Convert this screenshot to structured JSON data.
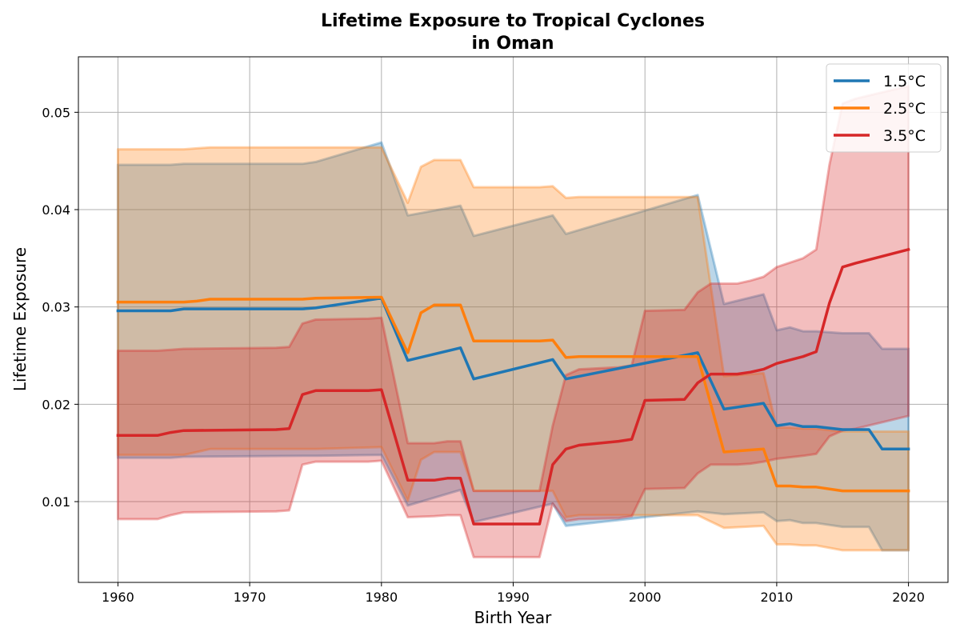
{
  "chart_data": {
    "type": "area",
    "title": "Lifetime Exposure to Tropical Cyclones",
    "subtitle": "in Oman",
    "xlabel": "Birth Year",
    "ylabel": "Lifetime Exposure",
    "xlim": [
      1957,
      2023
    ],
    "ylim": [
      0.0017,
      0.0557
    ],
    "xticks": [
      1960,
      1970,
      1980,
      1990,
      2000,
      2010,
      2020
    ],
    "xtick_labels": [
      "1960",
      "1970",
      "1980",
      "1990",
      "2000",
      "2010",
      "2020"
    ],
    "yticks": [
      0.01,
      0.02,
      0.03,
      0.04,
      0.05
    ],
    "ytick_labels": [
      "0.01",
      "0.02",
      "0.03",
      "0.04",
      "0.05"
    ],
    "grid": true,
    "legend_position": "top-right",
    "series": [
      {
        "name": "1.5°C",
        "color": "#1f77b4",
        "x": [
          1960,
          1964,
          1965,
          1974,
          1975,
          1980,
          1982,
          1986,
          1987,
          1993,
          1994,
          2004,
          2006,
          2009,
          2010,
          2011,
          2012,
          2013,
          2015,
          2017,
          2018,
          2020
        ],
        "y": [
          0.0296,
          0.0296,
          0.0298,
          0.0298,
          0.0299,
          0.0309,
          0.0245,
          0.0258,
          0.0226,
          0.0246,
          0.0226,
          0.0253,
          0.0195,
          0.0201,
          0.0178,
          0.018,
          0.0177,
          0.0177,
          0.0174,
          0.0174,
          0.0154,
          0.0154
        ],
        "lower": [
          0.0145,
          0.0145,
          0.0146,
          0.0147,
          0.0147,
          0.0148,
          0.0096,
          0.0112,
          0.0079,
          0.0098,
          0.0075,
          0.009,
          0.0087,
          0.0089,
          0.008,
          0.0081,
          0.0078,
          0.0078,
          0.0074,
          0.0074,
          0.005,
          0.005
        ],
        "upper": [
          0.0446,
          0.0446,
          0.0447,
          0.0447,
          0.0449,
          0.0469,
          0.0394,
          0.0404,
          0.0373,
          0.0394,
          0.0375,
          0.0415,
          0.0303,
          0.0313,
          0.0276,
          0.0279,
          0.0275,
          0.0275,
          0.0273,
          0.0273,
          0.0257,
          0.0257
        ]
      },
      {
        "name": "2.5°C",
        "color": "#ff7f0e",
        "x": [
          1960,
          1965,
          1966,
          1967,
          1974,
          1975,
          1980,
          1982,
          1983,
          1984,
          1986,
          1987,
          1992,
          1993,
          1994,
          1995,
          2004,
          2006,
          2009,
          2010,
          2011,
          2012,
          2013,
          2015,
          2020
        ],
        "y": [
          0.0305,
          0.0305,
          0.0306,
          0.0308,
          0.0308,
          0.0309,
          0.031,
          0.0253,
          0.0294,
          0.0302,
          0.0302,
          0.0265,
          0.0265,
          0.0266,
          0.0248,
          0.0249,
          0.0249,
          0.0151,
          0.0154,
          0.0116,
          0.0116,
          0.0115,
          0.0115,
          0.0111,
          0.0111
        ],
        "lower": [
          0.0148,
          0.0148,
          0.0151,
          0.0154,
          0.0154,
          0.0154,
          0.0156,
          0.0101,
          0.0143,
          0.0151,
          0.0151,
          0.0111,
          0.0111,
          0.0111,
          0.0084,
          0.0086,
          0.0086,
          0.0073,
          0.0075,
          0.0056,
          0.0056,
          0.0055,
          0.0055,
          0.005,
          0.005
        ],
        "upper": [
          0.0462,
          0.0462,
          0.0463,
          0.0464,
          0.0464,
          0.0464,
          0.0464,
          0.0407,
          0.0444,
          0.0451,
          0.0451,
          0.0423,
          0.0423,
          0.0424,
          0.0412,
          0.0413,
          0.0413,
          0.0229,
          0.0232,
          0.0176,
          0.0176,
          0.0175,
          0.0175,
          0.0172,
          0.0172
        ]
      },
      {
        "name": "3.5°C",
        "color": "#d62728",
        "x": [
          1960,
          1963,
          1964,
          1965,
          1972,
          1973,
          1974,
          1975,
          1979,
          1980,
          1982,
          1984,
          1985,
          1986,
          1987,
          1992,
          1993,
          1994,
          1995,
          1998,
          1999,
          2000,
          2003,
          2004,
          2005,
          2007,
          2008,
          2009,
          2010,
          2012,
          2013,
          2014,
          2015,
          2016,
          2020
        ],
        "y": [
          0.0168,
          0.0168,
          0.0171,
          0.0173,
          0.0174,
          0.0175,
          0.021,
          0.0214,
          0.0214,
          0.0215,
          0.0122,
          0.0122,
          0.0124,
          0.0124,
          0.0077,
          0.0077,
          0.0138,
          0.0154,
          0.0158,
          0.0162,
          0.0164,
          0.0204,
          0.0205,
          0.0222,
          0.0231,
          0.0231,
          0.0233,
          0.0236,
          0.0242,
          0.0249,
          0.0254,
          0.0304,
          0.0341,
          0.0345,
          0.0359
        ],
        "lower": [
          0.0082,
          0.0082,
          0.0086,
          0.0089,
          0.009,
          0.0091,
          0.0138,
          0.0141,
          0.0141,
          0.0142,
          0.0084,
          0.0085,
          0.0086,
          0.0086,
          0.0043,
          0.0043,
          0.0098,
          0.008,
          0.0082,
          0.0083,
          0.0085,
          0.0113,
          0.0114,
          0.0129,
          0.0138,
          0.0138,
          0.0139,
          0.0141,
          0.0144,
          0.0147,
          0.0149,
          0.0167,
          0.0173,
          0.0175,
          0.0188
        ],
        "upper": [
          0.0255,
          0.0255,
          0.0256,
          0.0257,
          0.0258,
          0.0259,
          0.0283,
          0.0287,
          0.0288,
          0.0289,
          0.016,
          0.016,
          0.0162,
          0.0162,
          0.0111,
          0.0111,
          0.0178,
          0.023,
          0.0236,
          0.0238,
          0.024,
          0.0296,
          0.0297,
          0.0315,
          0.0324,
          0.0324,
          0.0327,
          0.0331,
          0.0341,
          0.035,
          0.0359,
          0.0446,
          0.0509,
          0.0514,
          0.0527
        ]
      }
    ]
  }
}
